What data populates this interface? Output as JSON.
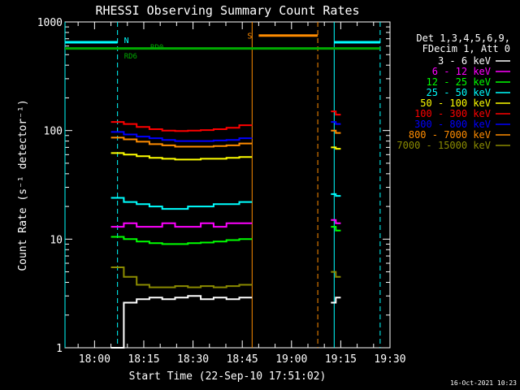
{
  "chart_data": {
    "type": "line",
    "title": "RHESSI Observing Summary Count Rates",
    "xlabel": "Start Time (22-Sep-10 17:51:02)",
    "ylabel": "Count Rate (s⁻¹ detector⁻¹)",
    "y_scale": "log",
    "ylim": [
      1,
      1000
    ],
    "y_ticks": [
      {
        "value": 1,
        "label": "1"
      },
      {
        "value": 10,
        "label": "10"
      },
      {
        "value": 100,
        "label": "100"
      },
      {
        "value": 1000,
        "label": "1000"
      }
    ],
    "xlim": [
      "17:51",
      "19:30"
    ],
    "x_ticks": [
      {
        "time": "18:00",
        "label": "18:00"
      },
      {
        "time": "18:15",
        "label": "18:15"
      },
      {
        "time": "18:30",
        "label": "18:30"
      },
      {
        "time": "18:45",
        "label": "18:45"
      },
      {
        "time": "19:00",
        "label": "19:00"
      },
      {
        "time": "19:15",
        "label": "19:15"
      },
      {
        "time": "19:30",
        "label": "19:30"
      }
    ],
    "legend_header": [
      "Det 1,3,4,5,6,9,",
      "FDecim 1, Att 0"
    ],
    "legend_position": "right",
    "footer_date": "16-Oct-2021 10:23",
    "series": [
      {
        "name": "3 - 6 keV",
        "color": "#ffffff",
        "segments": [
          {
            "start": "18:05",
            "end": "18:48",
            "values": [
              1.0,
              2.6,
              2.8,
              2.9,
              2.8,
              2.9,
              3.0,
              2.8,
              2.9,
              2.8,
              2.9
            ]
          },
          {
            "start": "19:12",
            "end": "19:15",
            "values": [
              2.6,
              2.9
            ]
          }
        ]
      },
      {
        "name": "6 - 12 keV",
        "color": "#ff00ff",
        "segments": [
          {
            "start": "18:05",
            "end": "18:48",
            "values": [
              13,
              14,
              13,
              13,
              14,
              13,
              13,
              14,
              13,
              14,
              14
            ]
          },
          {
            "start": "19:12",
            "end": "19:15",
            "values": [
              15,
              14
            ]
          }
        ]
      },
      {
        "name": "12 - 25 keV",
        "color": "#00ff00",
        "segments": [
          {
            "start": "18:05",
            "end": "18:48",
            "values": [
              10.5,
              10,
              9.5,
              9.2,
              9.0,
              9.0,
              9.2,
              9.3,
              9.5,
              9.8,
              10
            ]
          },
          {
            "start": "19:12",
            "end": "19:15",
            "values": [
              13,
              12
            ]
          }
        ]
      },
      {
        "name": "25 - 50 keV",
        "color": "#00ffff",
        "segments": [
          {
            "start": "18:05",
            "end": "18:48",
            "values": [
              24,
              22,
              21,
              20,
              19,
              19,
              20,
              20,
              21,
              21,
              22
            ]
          },
          {
            "start": "19:12",
            "end": "19:15",
            "values": [
              26,
              25
            ]
          }
        ]
      },
      {
        "name": "50 - 100 keV",
        "color": "#ffff00",
        "segments": [
          {
            "start": "18:05",
            "end": "18:48",
            "values": [
              62,
              60,
              58,
              56,
              55,
              54,
              54,
              55,
              55,
              56,
              57
            ]
          },
          {
            "start": "19:12",
            "end": "19:15",
            "values": [
              70,
              68
            ]
          }
        ]
      },
      {
        "name": "100 - 300 keV",
        "color": "#ff0000",
        "segments": [
          {
            "start": "18:05",
            "end": "18:48",
            "values": [
              120,
              115,
              108,
              103,
              100,
              99,
              100,
              101,
              103,
              106,
              112
            ]
          },
          {
            "start": "19:12",
            "end": "19:15",
            "values": [
              150,
              140
            ]
          }
        ]
      },
      {
        "name": "300 - 800 keV",
        "color": "#0000ff",
        "segments": [
          {
            "start": "18:05",
            "end": "18:48",
            "values": [
              97,
              92,
              88,
              85,
              82,
              80,
              80,
              80,
              81,
              82,
              85
            ]
          },
          {
            "start": "19:12",
            "end": "19:15",
            "values": [
              120,
              115
            ]
          }
        ]
      },
      {
        "name": "800 - 7000 keV",
        "color": "#ff8c00",
        "segments": [
          {
            "start": "18:05",
            "end": "18:48",
            "values": [
              86,
              83,
              79,
              75,
              73,
              71,
              71,
              71,
              72,
              73,
              76
            ]
          },
          {
            "start": "19:12",
            "end": "19:15",
            "values": [
              100,
              95
            ]
          }
        ]
      },
      {
        "name": "7000 - 15000 keV",
        "color": "#8b8b00",
        "segments": [
          {
            "start": "18:05",
            "end": "18:48",
            "values": [
              5.5,
              4.5,
              3.8,
              3.6,
              3.6,
              3.7,
              3.6,
              3.7,
              3.6,
              3.7,
              3.8
            ]
          },
          {
            "start": "19:12",
            "end": "19:15",
            "values": [
              5.0,
              4.5
            ]
          }
        ]
      }
    ],
    "annotations": {
      "night_bar": {
        "label": "N",
        "color": "#00ffff",
        "level": 650,
        "spans": [
          [
            "17:51",
            "18:07"
          ],
          [
            "19:13",
            "19:27"
          ]
        ]
      },
      "saa_bar": {
        "label": "S",
        "color": "#ff8c00",
        "level": 750,
        "span": [
          "18:50",
          "19:08"
        ]
      },
      "decimation_bar": {
        "color": "#00aa00",
        "level": 570,
        "span": [
          "17:51",
          "19:27"
        ]
      },
      "rd_labels": [
        {
          "label": "RD0",
          "time": "18:17",
          "value": 555
        },
        {
          "label": "RD6",
          "time": "18:09",
          "value": 460
        }
      ],
      "vertical_lines": [
        {
          "time": "17:51",
          "color": "#00ffff",
          "style": "solid"
        },
        {
          "time": "18:07",
          "color": "#00ffff",
          "style": "dashed"
        },
        {
          "time": "18:48",
          "color": "#ff8c00",
          "style": "solid"
        },
        {
          "time": "19:08",
          "color": "#ff8c00",
          "style": "dashed"
        },
        {
          "time": "19:13",
          "color": "#00ffff",
          "style": "solid"
        },
        {
          "time": "19:27",
          "color": "#00ffff",
          "style": "dashed"
        }
      ]
    }
  }
}
